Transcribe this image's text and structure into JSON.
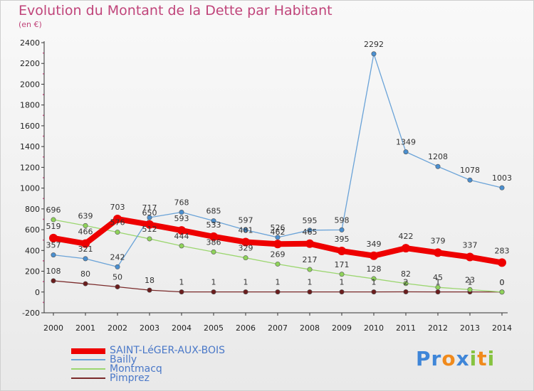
{
  "chart_data": {
    "type": "line",
    "title": "Evolution du Montant de la Dette par Habitant",
    "subtitle": "(en €)",
    "x": [
      "2000",
      "2001",
      "2002",
      "2003",
      "2004",
      "2005",
      "2006",
      "2007",
      "2008",
      "2009",
      "2010",
      "2011",
      "2012",
      "2013",
      "2014"
    ],
    "ylim": [
      -200,
      2400
    ],
    "yticks": [
      -200,
      0,
      200,
      400,
      600,
      800,
      1000,
      1200,
      1400,
      1600,
      1800,
      2000,
      2200,
      2400
    ],
    "grid": false,
    "legend_position": "bottom-left",
    "series": [
      {
        "name": "SAINT-LéGER-AUX-BOIS",
        "color": "#ee0000",
        "values": [
          519,
          466,
          703,
          650,
          593,
          533,
          481,
          462,
          465,
          395,
          349,
          422,
          379,
          337,
          283
        ]
      },
      {
        "name": "Bailly",
        "color": "#6aa3d8",
        "values": [
          357,
          321,
          242,
          717,
          768,
          685,
          597,
          526,
          595,
          598,
          2292,
          1349,
          1208,
          1078,
          1003
        ]
      },
      {
        "name": "Montmacq",
        "color": "#9bd66f",
        "values": [
          696,
          639,
          576,
          512,
          444,
          386,
          329,
          269,
          217,
          171,
          128,
          82,
          45,
          23,
          0
        ]
      },
      {
        "name": "Pimprez",
        "color": "#7a2a2a",
        "values": [
          108,
          80,
          50,
          18,
          1,
          1,
          1,
          1,
          1,
          1,
          1,
          2,
          1,
          1,
          0
        ]
      }
    ]
  },
  "labels": {
    "SAINT-LéGER-AUX-BOIS": [
      "519",
      "466",
      "703",
      "650",
      "593",
      "533",
      "481",
      "462",
      "465",
      "395",
      "349",
      "422",
      "379",
      "337",
      "283"
    ],
    "Bailly": [
      "357",
      "321",
      "242",
      "717",
      "768",
      "685",
      "597",
      "526",
      "595",
      "598",
      "2292",
      "1349",
      "1208",
      "1078",
      "1003"
    ],
    "Montmacq": [
      "696",
      "639",
      "576",
      "512",
      "444",
      "386",
      "329",
      "269",
      "217",
      "171",
      "128",
      "82",
      "45",
      "23",
      "0"
    ],
    "Pimprez": [
      "108",
      "80",
      "50",
      "18",
      "1",
      "1",
      "1",
      "1",
      "1",
      "1",
      "1",
      "2",
      "1",
      "1",
      "0"
    ]
  },
  "logo": {
    "text": "Proxiti"
  }
}
